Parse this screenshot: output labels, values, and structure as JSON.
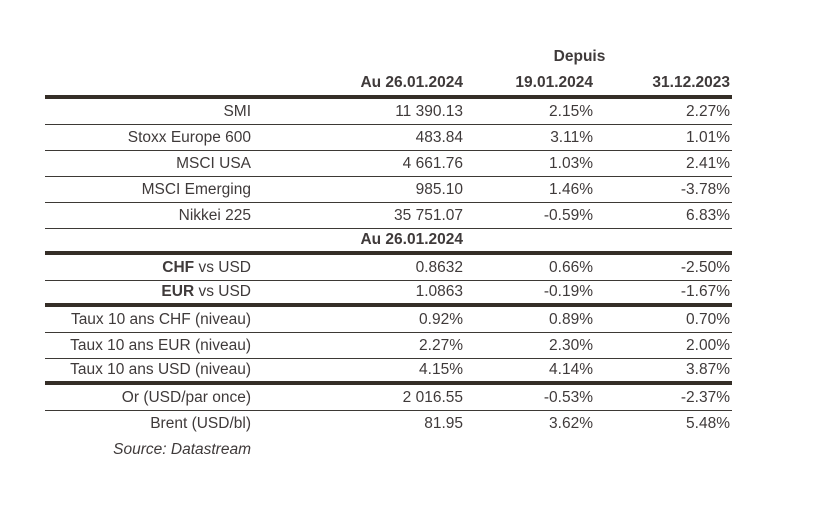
{
  "colors": {
    "background": "#ffffff",
    "text": "#3f3a3a",
    "border_thick": "#352e27",
    "border_thin": "#3d3935"
  },
  "table": {
    "header": {
      "depuis": "Depuis",
      "col_current": "Au 26.01.2024",
      "col_since_1": "19.01.2024",
      "col_since_2": "31.12.2023"
    },
    "equities": [
      {
        "label": "SMI",
        "value": "11 390.13",
        "since_1": "2.15%",
        "since_2": "2.27%"
      },
      {
        "label": "Stoxx Europe 600",
        "value": "483.84",
        "since_1": "3.11%",
        "since_2": "1.01%"
      },
      {
        "label": "MSCI USA",
        "value": "4 661.76",
        "since_1": "1.03%",
        "since_2": "2.41%"
      },
      {
        "label": "MSCI Emerging",
        "value": "985.10",
        "since_1": "1.46%",
        "since_2": "-3.78%"
      },
      {
        "label": "Nikkei 225",
        "value": "35 751.07",
        "since_1": "-0.59%",
        "since_2": "6.83%"
      }
    ],
    "subheader": "Au 26.01.2024",
    "fx": [
      {
        "label_bold": "CHF",
        "label_rest": " vs USD",
        "value": "0.8632",
        "since_1": "0.66%",
        "since_2": "-2.50%"
      },
      {
        "label_bold": "EUR",
        "label_rest": " vs USD",
        "value": "1.0863",
        "since_1": "-0.19%",
        "since_2": "-1.67%"
      }
    ],
    "rates": [
      {
        "label": "Taux 10 ans CHF (niveau)",
        "value": "0.92%",
        "since_1": "0.89%",
        "since_2": "0.70%"
      },
      {
        "label": "Taux 10 ans EUR (niveau)",
        "value": "2.27%",
        "since_1": "2.30%",
        "since_2": "2.00%"
      },
      {
        "label": "Taux 10 ans USD (niveau)",
        "value": "4.15%",
        "since_1": "4.14%",
        "since_2": "3.87%"
      }
    ],
    "commodities": [
      {
        "label": "Or (USD/par once)",
        "value": "2 016.55",
        "since_1": "-0.53%",
        "since_2": "-2.37%"
      },
      {
        "label": "Brent (USD/bl)",
        "value": "81.95",
        "since_1": "3.62%",
        "since_2": "5.48%"
      }
    ],
    "source": "Source: Datastream"
  }
}
